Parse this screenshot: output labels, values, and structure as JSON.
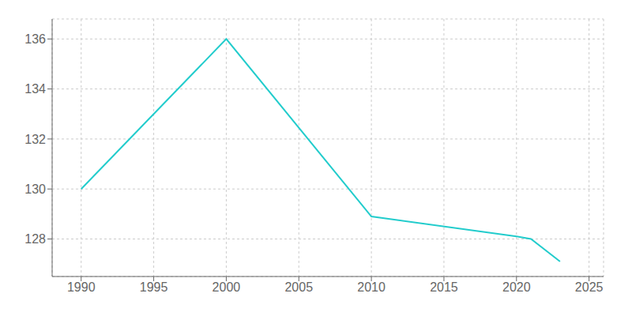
{
  "chart_data": {
    "type": "line",
    "x": [
      1990,
      2000,
      2010,
      2020,
      2021,
      2023
    ],
    "values": [
      130,
      136,
      128.9,
      128.1,
      128.0,
      127.1
    ],
    "color": "#22CCCC",
    "xlim": [
      1988,
      2026
    ],
    "ylim": [
      126.5,
      136.8
    ],
    "xticks": [
      1990,
      1995,
      2000,
      2005,
      2010,
      2015,
      2020,
      2025
    ],
    "yticks": [
      128,
      130,
      132,
      134,
      136
    ],
    "grid": true
  }
}
